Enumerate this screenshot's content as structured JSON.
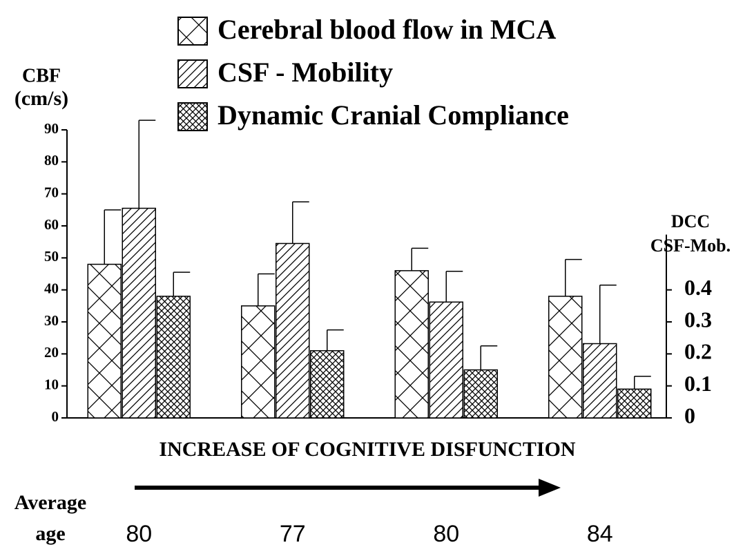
{
  "chart_data": {
    "type": "bar",
    "categories": [
      "80",
      "77",
      "80",
      "84"
    ],
    "category_label": [
      "Average",
      "age"
    ],
    "xlabel": "INCREASE OF COGNITIVE DISFUNCTION",
    "ylabel": [
      "CBF",
      "(cm/s)"
    ],
    "y2label": [
      "DCC",
      "CSF-Mob."
    ],
    "ylim": [
      0,
      90
    ],
    "yticks": [
      0,
      10,
      20,
      30,
      40,
      50,
      60,
      70,
      80,
      90
    ],
    "y2lim": [
      0,
      0.9
    ],
    "y2ticks": [
      0,
      0.1,
      0.2,
      0.3,
      0.4
    ],
    "grid": false,
    "legend": "top",
    "series": [
      {
        "name": "Cerebral blood flow in MCA",
        "color": "#000000",
        "pattern": "crosshatch",
        "values": [
          48,
          35,
          46,
          38
        ],
        "errors": [
          17,
          10,
          7,
          11.5
        ]
      },
      {
        "name": "CSF - Mobility",
        "color": "#000000",
        "pattern": "diagonal",
        "axis": "y2",
        "values": [
          0.655,
          0.545,
          0.362,
          0.232
        ],
        "errors": [
          0.275,
          0.13,
          0.096,
          0.183
        ]
      },
      {
        "name": "Dynamic Cranial Compliance",
        "color": "#000000",
        "pattern": "dense-crosshatch",
        "axis": "y2",
        "values": [
          0.38,
          0.21,
          0.15,
          0.09
        ],
        "errors": [
          0.075,
          0.065,
          0.075,
          0.04
        ]
      }
    ]
  }
}
